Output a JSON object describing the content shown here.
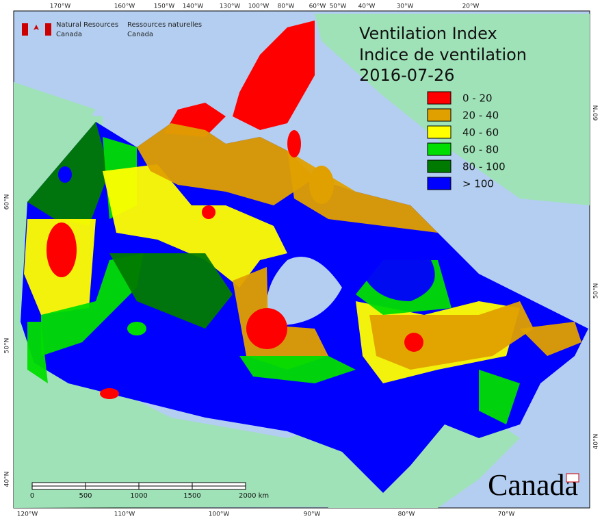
{
  "header": {
    "agency_en": [
      "Natural Resources",
      "Canada"
    ],
    "agency_fr": [
      "Ressources naturelles",
      "Canada"
    ]
  },
  "title": {
    "lines": [
      "Ventilation Index",
      "Indice de ventilation",
      "2016-07-26"
    ]
  },
  "legend": {
    "items": [
      {
        "label": "0 - 20",
        "color": "#ff0000"
      },
      {
        "label": "20 - 40",
        "color": "#e0a000"
      },
      {
        "label": "40 - 60",
        "color": "#ffff00"
      },
      {
        "label": "60 - 80",
        "color": "#00dd00"
      },
      {
        "label": "80 - 100",
        "color": "#007a00"
      },
      {
        "label": "> 100",
        "color": "#0000ff"
      }
    ]
  },
  "graticule": {
    "top": [
      "170°W",
      "160°W",
      "150°W",
      "140°W",
      "130°W",
      "100°W",
      "80°W",
      "60°W",
      "50°W",
      "40°W",
      "30°W",
      "20°W"
    ],
    "bottom": [
      "120°W",
      "110°W",
      "100°W",
      "90°W",
      "80°W",
      "70°W"
    ],
    "left": [
      "60°N",
      "50°N",
      "40°N"
    ],
    "right": [
      "60°N",
      "50°N",
      "40°N"
    ]
  },
  "scale_bar": {
    "labels": [
      "0",
      "500",
      "1000",
      "1500",
      "2000 km"
    ]
  },
  "wordmark": "Canada"
}
